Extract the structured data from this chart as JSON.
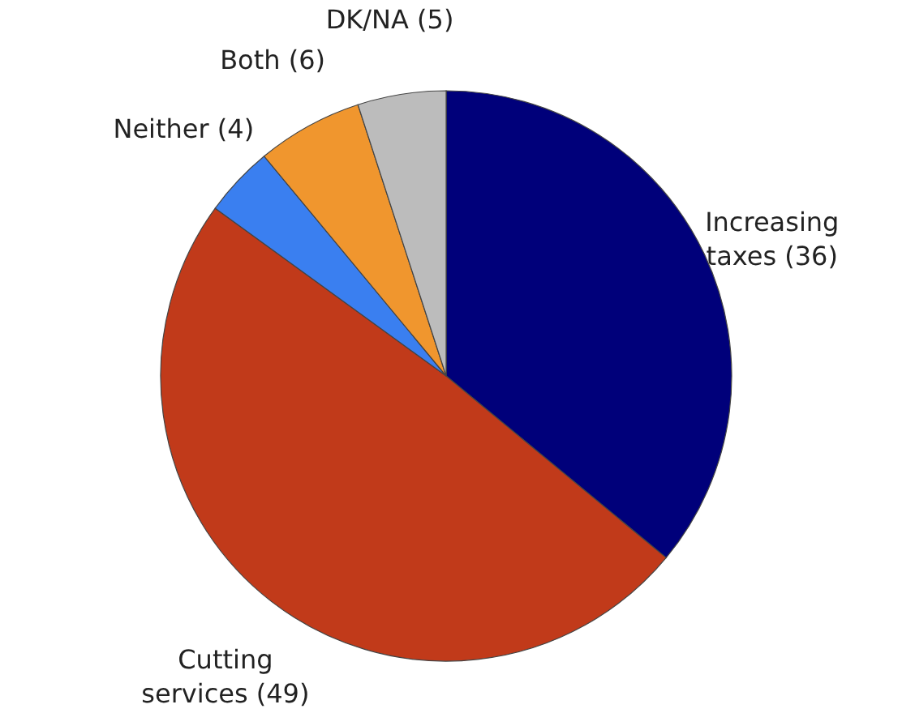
{
  "chart_data": {
    "type": "pie",
    "categories": [
      "Increasing taxes",
      "Cutting services",
      "Neither",
      "Both",
      "DK/NA"
    ],
    "values": [
      36,
      49,
      4,
      6,
      5
    ],
    "value_labels": [
      "(36)",
      "(49)",
      "(4)",
      "(6)",
      "(5)"
    ],
    "colors": [
      "#00007a",
      "#c13a1a",
      "#3a7ff0",
      "#f0962e",
      "#bcbcbc"
    ]
  }
}
